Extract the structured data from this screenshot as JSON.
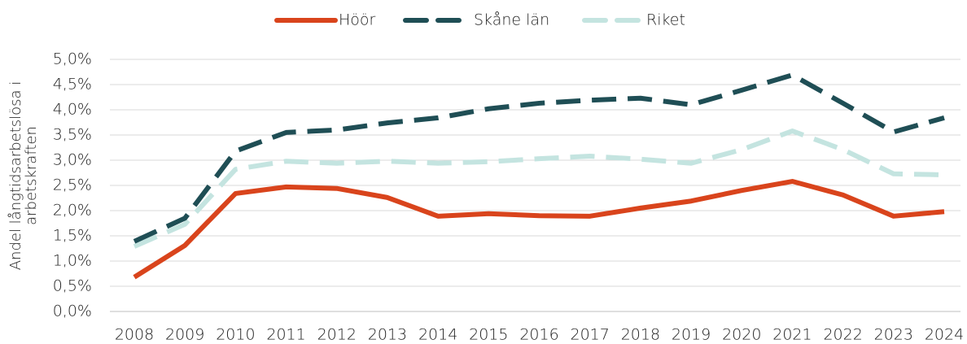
{
  "chart_data": {
    "type": "line",
    "categories": [
      "2008",
      "2009",
      "2010",
      "2011",
      "2012",
      "2013",
      "2014",
      "2015",
      "2016",
      "2017",
      "2018",
      "2019",
      "2020",
      "2021",
      "2022",
      "2023",
      "2024"
    ],
    "series": [
      {
        "name": "Höör",
        "color": "#d9441c",
        "dash": "solid",
        "values": [
          0.68,
          1.31,
          2.34,
          2.47,
          2.44,
          2.26,
          1.89,
          1.94,
          1.9,
          1.89,
          2.05,
          2.19,
          2.4,
          2.58,
          2.31,
          1.89,
          1.98
        ]
      },
      {
        "name": "Skåne län",
        "color": "#1f4e55",
        "dash": "dashed",
        "values": [
          1.39,
          1.85,
          3.18,
          3.55,
          3.6,
          3.74,
          3.84,
          4.02,
          4.13,
          4.19,
          4.23,
          4.1,
          4.39,
          4.69,
          4.13,
          3.56,
          3.84
        ]
      },
      {
        "name": "Riket",
        "color": "#c4e4e0",
        "dash": "dashed",
        "values": [
          1.29,
          1.73,
          2.82,
          2.98,
          2.94,
          2.98,
          2.94,
          2.97,
          3.03,
          3.08,
          3.02,
          2.94,
          3.21,
          3.58,
          3.21,
          2.73,
          2.71
        ]
      }
    ],
    "ylabel": [
      "Andel långtidsarbetslösa i",
      "arbetskraften"
    ],
    "ylim": [
      0,
      5
    ],
    "yticks": [
      {
        "value": 0,
        "label": "0,0%"
      },
      {
        "value": 0.5,
        "label": "0,5%"
      },
      {
        "value": 1,
        "label": "1,0%"
      },
      {
        "value": 1.5,
        "label": "1,5%"
      },
      {
        "value": 2,
        "label": "2,0%"
      },
      {
        "value": 2.5,
        "label": "2,5%"
      },
      {
        "value": 3,
        "label": "3,0%"
      },
      {
        "value": 3.5,
        "label": "3,5%"
      },
      {
        "value": 4,
        "label": "4,0%"
      },
      {
        "value": 4.5,
        "label": "4,5%"
      },
      {
        "value": 5,
        "label": "5,0%"
      }
    ],
    "grid": true,
    "legend": "top"
  }
}
